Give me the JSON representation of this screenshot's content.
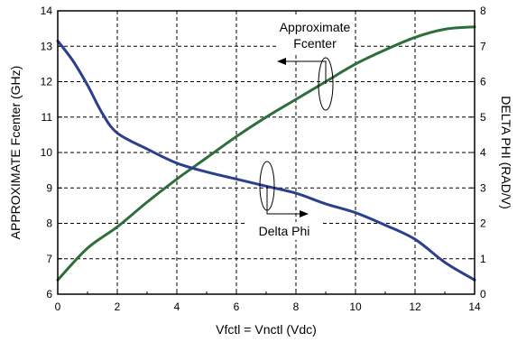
{
  "chart_data": {
    "type": "line",
    "xlabel": "Vfctl = Vnctl (Vdc)",
    "ylabel_left": "APPROXIMATE Fcenter (GHz)",
    "ylabel_right": "DELTA PHI (RAD/V)",
    "xlim": [
      0,
      14
    ],
    "ylim_left": [
      6,
      14
    ],
    "ylim_right": [
      0,
      8
    ],
    "x_ticks": [
      "0",
      "2",
      "4",
      "6",
      "8",
      "10",
      "12",
      "14"
    ],
    "y_ticks_left": [
      "6",
      "7",
      "8",
      "9",
      "10",
      "11",
      "12",
      "13",
      "14"
    ],
    "y_ticks_right": [
      "0",
      "1",
      "2",
      "3",
      "4",
      "5",
      "6",
      "7",
      "8"
    ],
    "grid": true,
    "annotations": {
      "fcenter_line1": "Approximate",
      "fcenter_line2": "Fcenter",
      "delta": "Delta Phi"
    },
    "colors": {
      "fcenter": "#2d6e3a",
      "delta_phi": "#2b3f8e"
    },
    "series": [
      {
        "axis": "left",
        "x": [
          0,
          1,
          2,
          3,
          4,
          5,
          6,
          7,
          8,
          9,
          10,
          11,
          12,
          13,
          14
        ],
        "values": [
          6.4,
          7.3,
          7.9,
          8.6,
          9.25,
          9.85,
          10.45,
          11.0,
          11.5,
          12.0,
          12.5,
          12.9,
          13.25,
          13.48,
          13.55
        ]
      },
      {
        "axis": "right",
        "x": [
          0,
          0.5,
          1,
          1.5,
          2,
          3,
          4,
          5,
          6,
          7,
          8,
          9,
          10,
          11,
          12,
          13,
          14
        ],
        "values": [
          7.15,
          6.6,
          5.9,
          5.1,
          4.55,
          4.1,
          3.7,
          3.45,
          3.25,
          3.05,
          2.85,
          2.55,
          2.3,
          1.95,
          1.55,
          0.9,
          0.4
        ]
      }
    ]
  }
}
